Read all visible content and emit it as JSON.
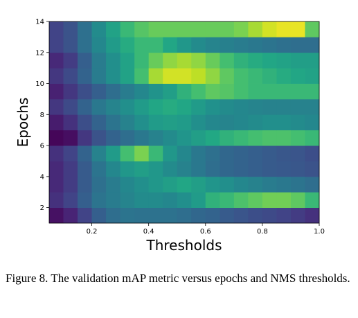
{
  "chart_data": {
    "type": "heatmap",
    "title": "",
    "xlabel": "Thresholds",
    "ylabel": "Epochs",
    "xlim": [
      0.05,
      1.0
    ],
    "ylim": [
      1,
      14
    ],
    "x_ticks": [
      "0.2",
      "0.4",
      "0.6",
      "0.8",
      "1.0"
    ],
    "x_tick_values": [
      0.2,
      0.4,
      0.6,
      0.8,
      1.0
    ],
    "y_ticks": [
      "2",
      "4",
      "6",
      "8",
      "10",
      "12",
      "14"
    ],
    "y_tick_values": [
      2,
      4,
      6,
      8,
      10,
      12,
      14
    ],
    "colormap": "viridis",
    "grid": false,
    "colorbar": false,
    "x_bins": [
      0.05,
      0.1,
      0.15,
      0.2,
      0.25,
      0.3,
      0.35,
      0.4,
      0.45,
      0.5,
      0.55,
      0.6,
      0.65,
      0.7,
      0.75,
      0.8,
      0.85,
      0.9,
      0.95
    ],
    "y_bins": [
      1,
      2,
      3,
      4,
      5,
      6,
      7,
      8,
      9,
      10,
      11,
      12,
      13
    ],
    "values": [
      [
        0.06,
        0.13,
        0.25,
        0.38,
        0.45,
        0.48,
        0.47,
        0.47,
        0.47,
        0.45,
        0.42,
        0.4,
        0.36,
        0.33,
        0.3,
        0.28,
        0.25,
        0.22,
        0.18
      ],
      [
        0.18,
        0.25,
        0.38,
        0.48,
        0.52,
        0.56,
        0.6,
        0.6,
        0.58,
        0.62,
        0.68,
        0.78,
        0.8,
        0.83,
        0.85,
        0.87,
        0.87,
        0.85,
        0.8
      ],
      [
        0.15,
        0.22,
        0.36,
        0.46,
        0.52,
        0.58,
        0.62,
        0.66,
        0.7,
        0.74,
        0.7,
        0.65,
        0.62,
        0.58,
        0.55,
        0.52,
        0.5,
        0.48,
        0.45
      ],
      [
        0.15,
        0.22,
        0.36,
        0.48,
        0.58,
        0.66,
        0.7,
        0.66,
        0.6,
        0.55,
        0.5,
        0.45,
        0.42,
        0.4,
        0.38,
        0.36,
        0.35,
        0.34,
        0.32
      ],
      [
        0.18,
        0.25,
        0.4,
        0.55,
        0.68,
        0.82,
        0.88,
        0.8,
        0.66,
        0.58,
        0.5,
        0.46,
        0.42,
        0.4,
        0.38,
        0.36,
        0.34,
        0.33,
        0.3
      ],
      [
        0.02,
        0.05,
        0.2,
        0.32,
        0.4,
        0.45,
        0.5,
        0.55,
        0.6,
        0.65,
        0.7,
        0.75,
        0.78,
        0.8,
        0.82,
        0.83,
        0.83,
        0.82,
        0.8
      ],
      [
        0.1,
        0.18,
        0.3,
        0.4,
        0.48,
        0.55,
        0.62,
        0.68,
        0.7,
        0.68,
        0.62,
        0.58,
        0.56,
        0.58,
        0.6,
        0.62,
        0.62,
        0.6,
        0.58
      ],
      [
        0.2,
        0.28,
        0.4,
        0.5,
        0.56,
        0.62,
        0.68,
        0.74,
        0.76,
        0.74,
        0.68,
        0.63,
        0.6,
        0.58,
        0.56,
        0.55,
        0.55,
        0.55,
        0.55
      ],
      [
        0.12,
        0.2,
        0.3,
        0.38,
        0.45,
        0.52,
        0.58,
        0.64,
        0.7,
        0.78,
        0.82,
        0.85,
        0.84,
        0.82,
        0.8,
        0.8,
        0.8,
        0.8,
        0.8
      ],
      [
        0.2,
        0.28,
        0.4,
        0.52,
        0.62,
        0.72,
        0.82,
        0.92,
        0.96,
        0.96,
        0.94,
        0.9,
        0.85,
        0.82,
        0.8,
        0.78,
        0.76,
        0.74,
        0.72
      ],
      [
        0.15,
        0.22,
        0.38,
        0.52,
        0.62,
        0.72,
        0.8,
        0.86,
        0.9,
        0.92,
        0.9,
        0.86,
        0.82,
        0.78,
        0.76,
        0.74,
        0.72,
        0.7,
        0.7
      ],
      [
        0.25,
        0.32,
        0.46,
        0.58,
        0.68,
        0.76,
        0.8,
        0.8,
        0.74,
        0.66,
        0.6,
        0.56,
        0.54,
        0.52,
        0.5,
        0.48,
        0.46,
        0.45,
        0.45
      ],
      [
        0.25,
        0.32,
        0.46,
        0.6,
        0.72,
        0.8,
        0.84,
        0.86,
        0.86,
        0.86,
        0.86,
        0.86,
        0.86,
        0.88,
        0.92,
        0.96,
        0.98,
        0.98,
        0.85
      ]
    ]
  },
  "caption": {
    "text": "Figure 8. The validation mAP metric versus epochs and NMS thresholds."
  }
}
